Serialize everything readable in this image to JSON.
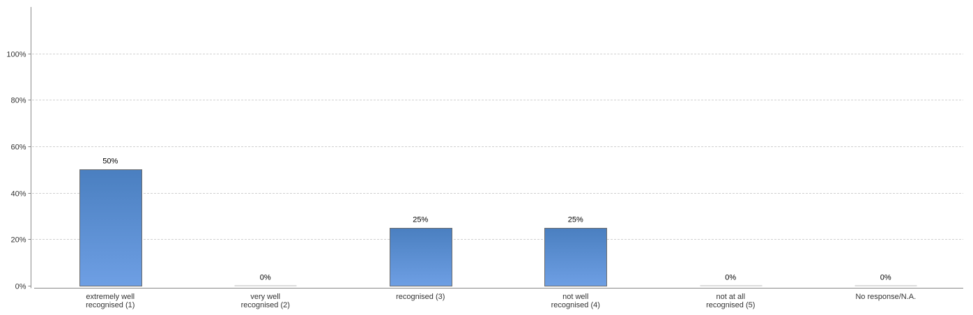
{
  "chart_data": {
    "type": "bar",
    "categories": [
      [
        "extremely well",
        "recognised (1)"
      ],
      [
        "very well",
        "recognised (2)"
      ],
      [
        "recognised (3)"
      ],
      [
        "not well",
        "recognised (4)"
      ],
      [
        "not at all",
        "recognised (5)"
      ],
      [
        "No response/N.A."
      ]
    ],
    "values": [
      50,
      0,
      25,
      25,
      0,
      0
    ],
    "data_labels": [
      "50%",
      "0%",
      "25%",
      "25%",
      "0%",
      "0%"
    ],
    "y_ticks": [
      0,
      20,
      40,
      60,
      80,
      100
    ],
    "y_tick_labels": [
      "0%",
      "20%",
      "40%",
      "60%",
      "80%",
      "100%"
    ],
    "ylim": [
      0,
      120
    ],
    "grid": true,
    "colors": {
      "bar_top": "#4a7fc0",
      "bar_bottom": "#6e9fe4",
      "bar_stroke": "#6b6b6b",
      "grid": "#d0d0d0",
      "axis": "#888888"
    }
  }
}
